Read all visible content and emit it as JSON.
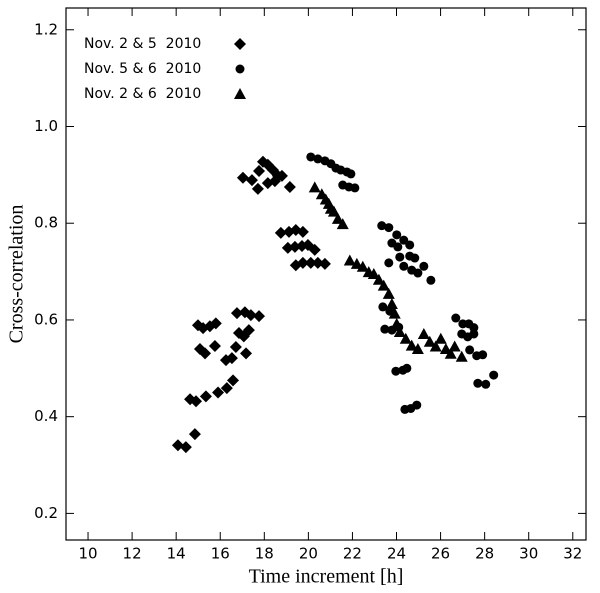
{
  "chart_data": {
    "type": "scatter",
    "x_label": "Time increment [h]",
    "y_label": "Cross-correlation",
    "xlim": [
      9,
      32.6
    ],
    "ylim": [
      0.145,
      1.245
    ],
    "xticks": [
      10,
      12,
      14,
      16,
      18,
      20,
      22,
      24,
      26,
      28,
      30,
      32
    ],
    "yticks": [
      0.2,
      0.4,
      0.6,
      0.8,
      {
        "value": 1,
        "label": "1.0"
      },
      1.2
    ],
    "legend_position": "upper left",
    "series": [
      {
        "name": "Nov. 2 & 5  2010",
        "color": "#000000",
        "marker": "diamond",
        "x": [
          14.08,
          14.44,
          14.85,
          14.63,
          14.9,
          15.22,
          15.53,
          15.8,
          15.08,
          15.31,
          15.76,
          14.99,
          15.35,
          15.9,
          16.3,
          16.58,
          16.26,
          16.53,
          16.71,
          16.85,
          17.17,
          16.76,
          17.12,
          17.39,
          17.76,
          17.07,
          17.3,
          17.03,
          17.44,
          17.71,
          17.76,
          17.94,
          18.16,
          18.39,
          18.62,
          18.16,
          18.48,
          18.8,
          19.16,
          18.75,
          19.12,
          19.43,
          19.75,
          19.07,
          19.39,
          19.71,
          19.98,
          20.29,
          19.43,
          19.75,
          20.11,
          20.43,
          20.75
        ],
        "values": [
          0.341,
          0.337,
          0.364,
          0.436,
          0.432,
          0.583,
          0.587,
          0.593,
          0.54,
          0.531,
          0.546,
          0.589,
          0.442,
          0.45,
          0.459,
          0.475,
          0.517,
          0.521,
          0.544,
          0.573,
          0.531,
          0.614,
          0.616,
          0.61,
          0.608,
          0.566,
          0.579,
          0.894,
          0.889,
          0.871,
          0.908,
          0.927,
          0.921,
          0.91,
          0.898,
          0.883,
          0.887,
          0.898,
          0.875,
          0.78,
          0.782,
          0.786,
          0.782,
          0.749,
          0.751,
          0.753,
          0.755,
          0.745,
          0.713,
          0.718,
          0.718,
          0.718,
          0.716
        ]
      },
      {
        "name": "Nov. 5 & 6  2010",
        "color": "#000000",
        "marker": "circle",
        "x": [
          20.11,
          20.43,
          20.75,
          21.02,
          21.25,
          21.47,
          21.75,
          21.93,
          21.56,
          21.84,
          22.11,
          23.33,
          23.65,
          24.01,
          24.33,
          24.6,
          23.79,
          24.06,
          23.65,
          24.15,
          24.6,
          24.83,
          24.33,
          24.69,
          24.97,
          25.24,
          25.56,
          23.38,
          23.7,
          23.47,
          23.79,
          24.1,
          23.97,
          24.29,
          24.47,
          24.38,
          24.65,
          24.92,
          26.69,
          27.01,
          27.28,
          27.51,
          26.96,
          27.23,
          27.51,
          27.32,
          27.64,
          27.91,
          27.69,
          28.05,
          28.41
        ],
        "values": [
          0.937,
          0.933,
          0.929,
          0.923,
          0.914,
          0.91,
          0.906,
          0.902,
          0.879,
          0.875,
          0.873,
          0.795,
          0.791,
          0.776,
          0.765,
          0.755,
          0.759,
          0.751,
          0.718,
          0.73,
          0.732,
          0.728,
          0.711,
          0.703,
          0.697,
          0.711,
          0.682,
          0.627,
          0.618,
          0.581,
          0.579,
          0.585,
          0.494,
          0.496,
          0.5,
          0.415,
          0.417,
          0.424,
          0.604,
          0.592,
          0.592,
          0.584,
          0.571,
          0.565,
          0.571,
          0.538,
          0.526,
          0.528,
          0.469,
          0.467,
          0.486
        ]
      },
      {
        "name": "Nov. 2 & 6  2010",
        "color": "#000000",
        "marker": "triangle",
        "x": [
          20.29,
          20.61,
          20.79,
          21.02,
          20.93,
          21.16,
          21.34,
          21.56,
          21.88,
          22.2,
          22.47,
          22.74,
          22.97,
          23.2,
          23.42,
          23.65,
          23.79,
          23.92,
          24.01,
          24.15,
          24.42,
          24.69,
          24.97,
          25.24,
          25.51,
          25.78,
          26.01,
          26.24,
          26.46,
          26.64,
          26.96
        ],
        "values": [
          0.874,
          0.86,
          0.849,
          0.83,
          0.84,
          0.824,
          0.809,
          0.798,
          0.723,
          0.716,
          0.71,
          0.699,
          0.695,
          0.683,
          0.671,
          0.654,
          0.633,
          0.613,
          0.592,
          0.575,
          0.561,
          0.547,
          0.54,
          0.571,
          0.555,
          0.545,
          0.561,
          0.54,
          0.53,
          0.545,
          0.524
        ]
      }
    ]
  }
}
